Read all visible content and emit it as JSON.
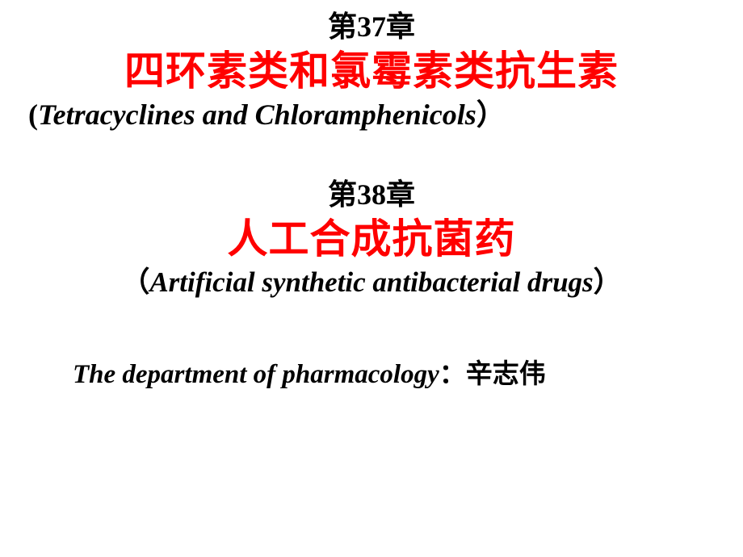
{
  "section1": {
    "chapter_label": "第37章",
    "title": "四环素类和氯霉素类抗生素",
    "subtitle_open": "(",
    "subtitle_text": "Tetracyclines and Chloramphenicols",
    "subtitle_close": "）"
  },
  "section2": {
    "chapter_label": "第38章",
    "title": "人工合成抗菌药",
    "subtitle_open": "（",
    "subtitle_text": "Artificial synthetic antibacterial drugs",
    "subtitle_close": "）"
  },
  "footer": {
    "dept": "The department of pharmacology",
    "sep": "：",
    "author": "辛志伟"
  },
  "style": {
    "chapter_fontsize": "36px",
    "title1_fontsize": "50px",
    "subtitle1_fontsize": "36px",
    "title2_fontsize": "50px",
    "subtitle2_fontsize": "35px",
    "dept_fontsize": "33px",
    "color_black": "#000000",
    "color_red": "#ff0000",
    "gap_after_section1": "52px",
    "gap_before_footer": "70px"
  }
}
